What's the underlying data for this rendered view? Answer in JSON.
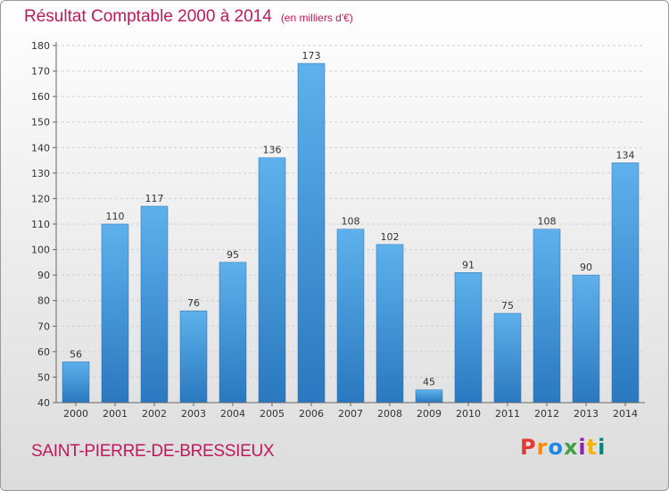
{
  "chart_data": {
    "type": "bar",
    "title": "Résultat Comptable 2000 à 2014",
    "subtitle": "(en milliers d'€)",
    "categories": [
      "2000",
      "2001",
      "2002",
      "2003",
      "2004",
      "2005",
      "2006",
      "2007",
      "2008",
      "2009",
      "2010",
      "2011",
      "2012",
      "2013",
      "2014"
    ],
    "values": [
      56,
      110,
      117,
      76,
      95,
      136,
      173,
      108,
      102,
      45,
      91,
      75,
      108,
      90,
      134
    ],
    "xlabel": "",
    "ylabel": "",
    "ylim": [
      40,
      180
    ],
    "yticks": [
      40,
      50,
      60,
      70,
      80,
      90,
      100,
      110,
      120,
      130,
      140,
      150,
      160,
      170,
      180
    ],
    "grid": true,
    "legend": "none",
    "bar_color": "#3d8fd6"
  },
  "footer": {
    "place_name": "SAINT-PIERRE-DE-BRESSIEUX",
    "logo_text": "Proxiti",
    "logo_colors": [
      "#e53935",
      "#fb8c00",
      "#1e88e5",
      "#43a047",
      "#8e24aa",
      "#f4b400",
      "#00897b"
    ]
  }
}
